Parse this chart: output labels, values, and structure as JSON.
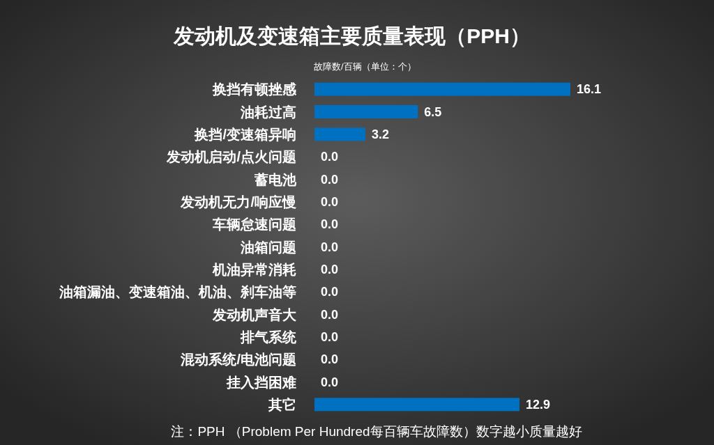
{
  "chart_data": {
    "type": "bar",
    "orientation": "horizontal",
    "title": "发动机及变速箱主要质量表现（PPH）",
    "subtitle": "故障数/百辆（单位：个）",
    "categories": [
      "换挡有顿挫感",
      "油耗过高",
      "换挡/变速箱异响",
      "发动机启动/点火问题",
      "蓄电池",
      "发动机无力/响应慢",
      "车辆怠速问题",
      "油箱问题",
      "机油异常消耗",
      "油箱漏油、变速箱油、机油、刹车油等",
      "发动机声音大",
      "排气系统",
      "混动系统/电池问题",
      "挂入挡困难",
      "其它"
    ],
    "values": [
      16.1,
      6.5,
      3.2,
      0.0,
      0.0,
      0.0,
      0.0,
      0.0,
      0.0,
      0.0,
      0.0,
      0.0,
      0.0,
      0.0,
      12.9
    ],
    "value_labels": [
      "16.1",
      "6.5",
      "3.2",
      "0.0",
      "0.0",
      "0.0",
      "0.0",
      "0.0",
      "0.0",
      "0.0",
      "0.0",
      "0.0",
      "0.0",
      "0.0",
      "12.9"
    ],
    "color": "#0070c0",
    "annotations": [
      "注：PPH （Problem Per Hundred每百辆车故障数）数字越小质量越好"
    ]
  }
}
